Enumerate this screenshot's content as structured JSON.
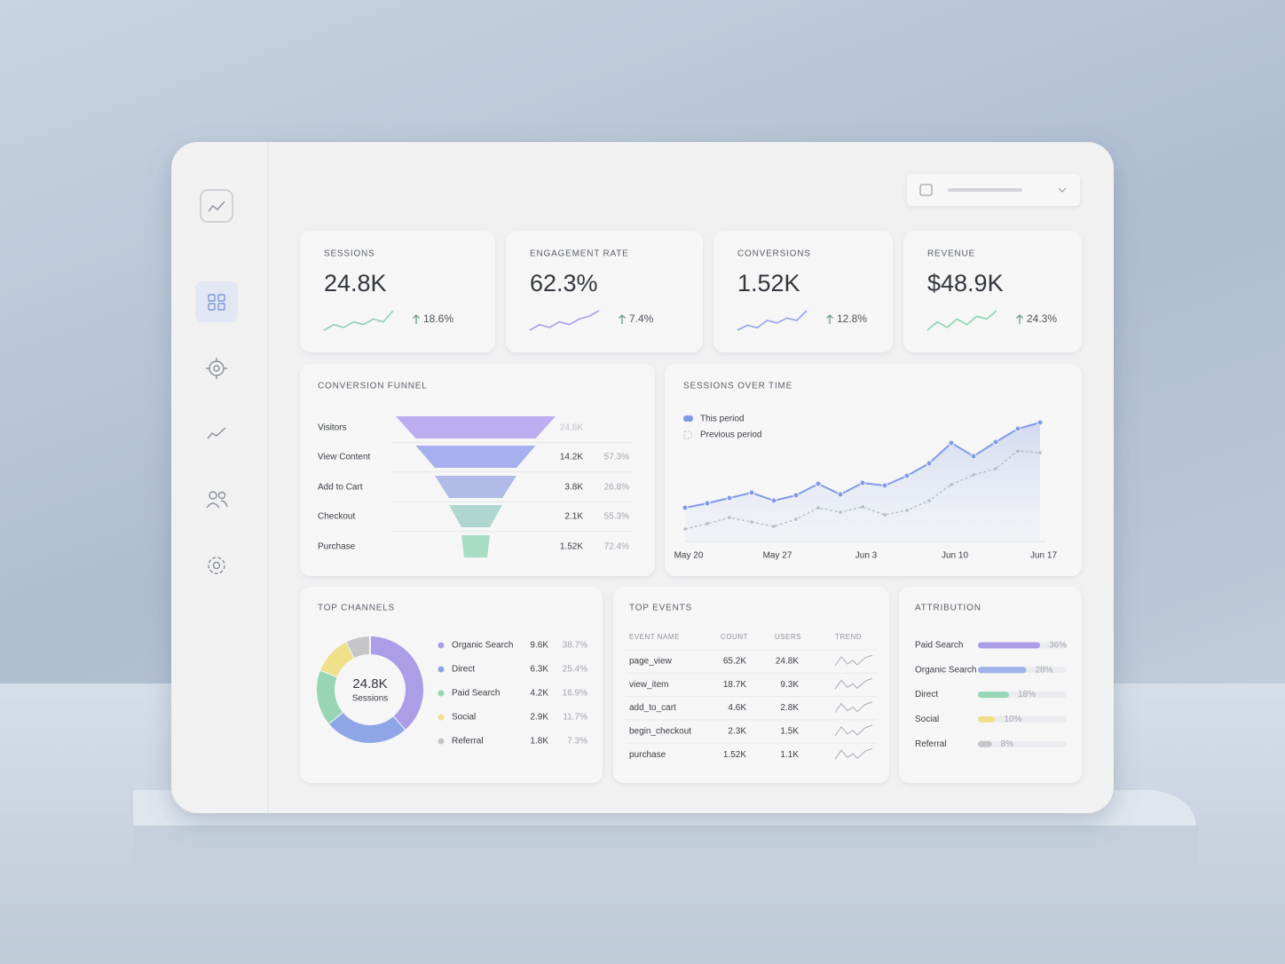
{
  "kpis": [
    {
      "label": "SESSIONS",
      "value": "24.8K",
      "change": "18.6%",
      "color": "#8fcfb6",
      "trend": [
        3,
        5,
        4,
        6,
        5,
        7,
        6,
        10
      ]
    },
    {
      "label": "ENGAGEMENT RATE",
      "value": "62.3%",
      "change": "7.4%",
      "color": "#a99be6",
      "trend": [
        2,
        4,
        3,
        5,
        4,
        6,
        7,
        9
      ]
    },
    {
      "label": "CONVERSIONS",
      "value": "1.52K",
      "change": "12.8%",
      "color": "#8ea6e6",
      "trend": [
        2,
        4,
        3,
        6,
        5,
        7,
        6,
        10
      ]
    },
    {
      "label": "REVENUE",
      "value": "$48.9K",
      "change": "24.3%",
      "color": "#8fd2b0",
      "trend": [
        3,
        6,
        4,
        7,
        5,
        8,
        7,
        10
      ]
    }
  ],
  "funnel": {
    "title": "CONVERSION FUNNEL",
    "stages": [
      {
        "name": "Visitors",
        "count": "24.8K",
        "color": "#b6a5ee"
      },
      {
        "name": "View Content",
        "count": "14.2K",
        "rate": "57.3%",
        "color": "#9ea9ec"
      },
      {
        "name": "Add to Cart",
        "count": "3.8K",
        "rate": "26.8%",
        "color": "#a9b6e4"
      },
      {
        "name": "Checkout",
        "count": "2.1K",
        "rate": "55.3%",
        "color": "#a7d3ca"
      },
      {
        "name": "Purchase",
        "count": "1.52K",
        "rate": "72.4%",
        "color": "#9fdcbc"
      }
    ]
  },
  "sessions_chart": {
    "type": "line",
    "title": "SESSIONS OVER TIME",
    "x": [
      "May 20",
      null,
      null,
      null,
      "May 27",
      null,
      null,
      null,
      "Jun 3",
      null,
      null,
      null,
      "Jun 10",
      null,
      null,
      null,
      "Jun 17"
    ],
    "series": [
      {
        "name": "This period",
        "color": "#7f9be6",
        "values": [
          48,
          53,
          59,
          65,
          56,
          62,
          75,
          63,
          76,
          73,
          84,
          98,
          121,
          106,
          122,
          137,
          144
        ]
      },
      {
        "name": "Previous period",
        "color": "#b7bcc7",
        "values": [
          24,
          30,
          37,
          32,
          27,
          35,
          48,
          43,
          49,
          40,
          45,
          56,
          74,
          85,
          92,
          112,
          110
        ]
      }
    ]
  },
  "channels": {
    "title": "TOP CHANNELS",
    "center_value": "24.8K",
    "center_label": "Sessions",
    "items": [
      {
        "name": "Organic Search",
        "count": "9.6K",
        "share": 38.7,
        "share_label": "38.7%",
        "color": "#ab9de6"
      },
      {
        "name": "Direct",
        "count": "6.3K",
        "share": 25.4,
        "share_label": "25.4%",
        "color": "#8ea6e6"
      },
      {
        "name": "Paid Search",
        "count": "4.2K",
        "share": 16.9,
        "share_label": "16.9%",
        "color": "#97d5b4"
      },
      {
        "name": "Social",
        "count": "2.9K",
        "share": 11.7,
        "share_label": "11.7%",
        "color": "#efe08a"
      },
      {
        "name": "Referral",
        "count": "1.8K",
        "share": 7.3,
        "share_label": "7.3%",
        "color": "#c6c6ca"
      }
    ]
  },
  "events": {
    "title": "TOP EVENTS",
    "columns": [
      "EVENT NAME",
      "COUNT",
      "USERS",
      "TREND"
    ],
    "rows": [
      [
        "page_view",
        "65.2K",
        "24.8K"
      ],
      [
        "view_item",
        "18.7K",
        "9.3K"
      ],
      [
        "add_to_cart",
        "4.6K",
        "2.8K"
      ],
      [
        "begin_checkout",
        "2.3K",
        "1.5K"
      ],
      [
        "purchase",
        "1.52K",
        "1.1K"
      ]
    ]
  },
  "attribution": {
    "title": "ATTRIBUTION",
    "items": [
      {
        "name": "Paid Search",
        "value": 36,
        "value_label": "36%",
        "color": "#ab9de6"
      },
      {
        "name": "Organic Search",
        "value": 28,
        "value_label": "28%",
        "color": "#9fb2ea"
      },
      {
        "name": "Direct",
        "value": 18,
        "value_label": "18%",
        "color": "#97d5b4"
      },
      {
        "name": "Social",
        "value": 10,
        "value_label": "10%",
        "color": "#efe08a"
      },
      {
        "name": "Referral",
        "value": 8,
        "value_label": "8%",
        "color": "#c6c6ca"
      }
    ]
  }
}
